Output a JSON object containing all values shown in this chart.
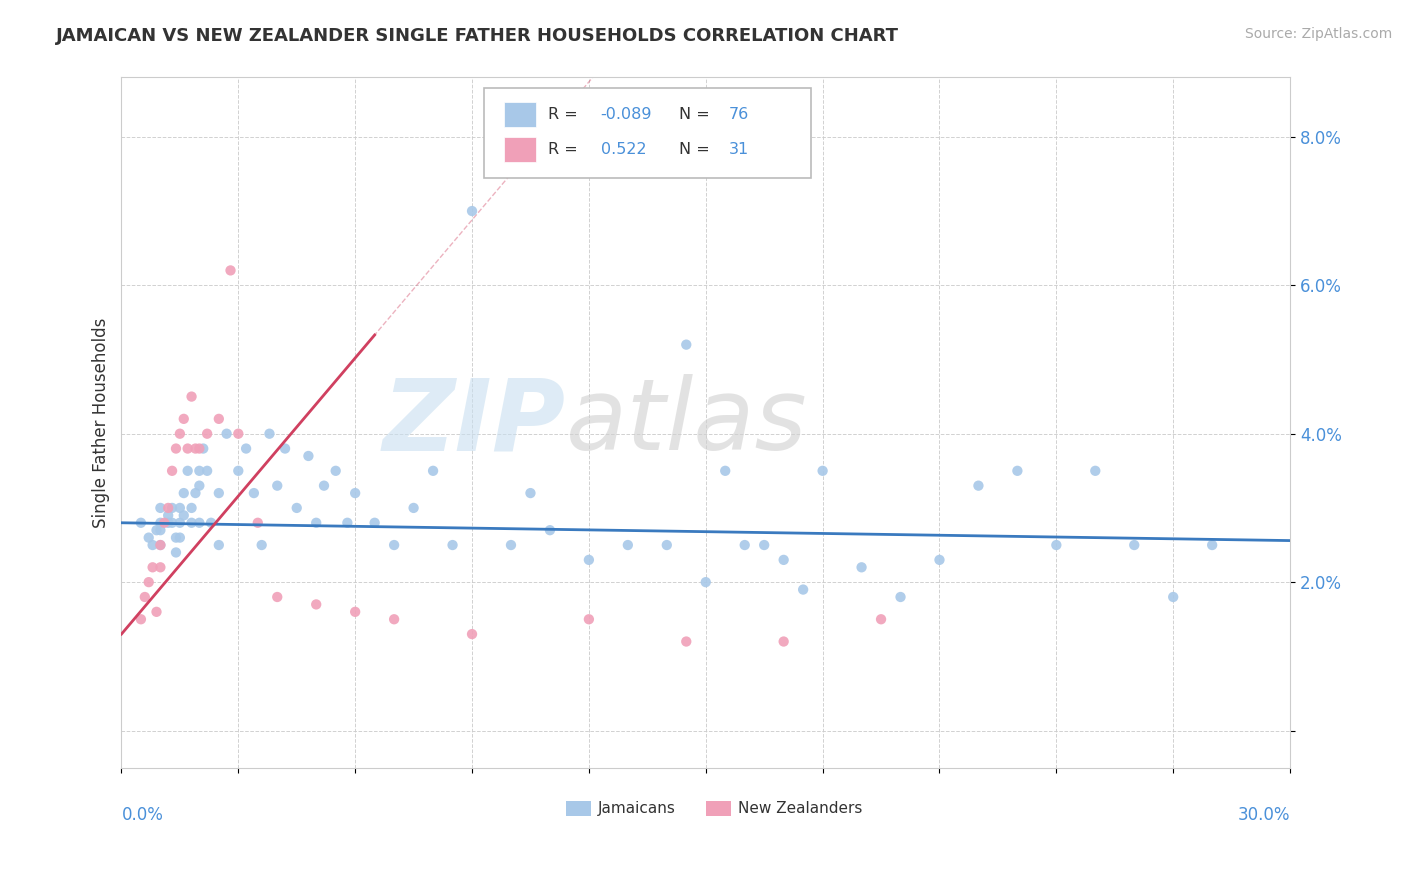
{
  "title": "JAMAICAN VS NEW ZEALANDER SINGLE FATHER HOUSEHOLDS CORRELATION CHART",
  "source": "Source: ZipAtlas.com",
  "ylabel": "Single Father Households",
  "y_ticks": [
    0.0,
    0.02,
    0.04,
    0.06,
    0.08
  ],
  "y_tick_labels": [
    "",
    "2.0%",
    "4.0%",
    "6.0%",
    "8.0%"
  ],
  "x_lim": [
    0.0,
    0.3
  ],
  "y_lim": [
    -0.005,
    0.088
  ],
  "r_jamaican": -0.089,
  "n_jamaican": 76,
  "r_nz": 0.522,
  "n_nz": 31,
  "color_jamaican": "#a8c8e8",
  "color_nz": "#f0a0b8",
  "line_color_jamaican": "#3a7abf",
  "line_color_nz": "#d04060",
  "jamaican_x": [
    0.005,
    0.007,
    0.008,
    0.009,
    0.01,
    0.01,
    0.01,
    0.01,
    0.012,
    0.012,
    0.013,
    0.013,
    0.014,
    0.014,
    0.015,
    0.015,
    0.015,
    0.016,
    0.016,
    0.017,
    0.018,
    0.018,
    0.019,
    0.02,
    0.02,
    0.02,
    0.021,
    0.022,
    0.023,
    0.025,
    0.025,
    0.027,
    0.03,
    0.032,
    0.034,
    0.036,
    0.038,
    0.04,
    0.042,
    0.045,
    0.048,
    0.05,
    0.052,
    0.055,
    0.058,
    0.06,
    0.065,
    0.07,
    0.075,
    0.08,
    0.085,
    0.09,
    0.1,
    0.105,
    0.11,
    0.12,
    0.13,
    0.14,
    0.15,
    0.16,
    0.17,
    0.18,
    0.19,
    0.2,
    0.21,
    0.22,
    0.23,
    0.24,
    0.25,
    0.26,
    0.27,
    0.28,
    0.145,
    0.155,
    0.165,
    0.175
  ],
  "jamaican_y": [
    0.028,
    0.026,
    0.025,
    0.027,
    0.028,
    0.027,
    0.03,
    0.025,
    0.029,
    0.028,
    0.03,
    0.028,
    0.026,
    0.024,
    0.03,
    0.028,
    0.026,
    0.032,
    0.029,
    0.035,
    0.03,
    0.028,
    0.032,
    0.035,
    0.033,
    0.028,
    0.038,
    0.035,
    0.028,
    0.025,
    0.032,
    0.04,
    0.035,
    0.038,
    0.032,
    0.025,
    0.04,
    0.033,
    0.038,
    0.03,
    0.037,
    0.028,
    0.033,
    0.035,
    0.028,
    0.032,
    0.028,
    0.025,
    0.03,
    0.035,
    0.025,
    0.07,
    0.025,
    0.032,
    0.027,
    0.023,
    0.025,
    0.025,
    0.02,
    0.025,
    0.023,
    0.035,
    0.022,
    0.018,
    0.023,
    0.033,
    0.035,
    0.025,
    0.035,
    0.025,
    0.018,
    0.025,
    0.052,
    0.035,
    0.025,
    0.019
  ],
  "nz_x": [
    0.005,
    0.006,
    0.007,
    0.008,
    0.009,
    0.01,
    0.01,
    0.011,
    0.012,
    0.013,
    0.014,
    0.015,
    0.016,
    0.017,
    0.018,
    0.019,
    0.02,
    0.022,
    0.025,
    0.028,
    0.03,
    0.035,
    0.04,
    0.05,
    0.06,
    0.07,
    0.09,
    0.12,
    0.145,
    0.17,
    0.195
  ],
  "nz_y": [
    0.015,
    0.018,
    0.02,
    0.022,
    0.016,
    0.025,
    0.022,
    0.028,
    0.03,
    0.035,
    0.038,
    0.04,
    0.042,
    0.038,
    0.045,
    0.038,
    0.038,
    0.04,
    0.042,
    0.062,
    0.04,
    0.028,
    0.018,
    0.017,
    0.016,
    0.015,
    0.013,
    0.015,
    0.012,
    0.012,
    0.015
  ],
  "nz_trend_x0": 0.0,
  "nz_trend_x1": 0.065,
  "nz_line_start_x": 0.0,
  "nz_line_end_x": 0.065
}
